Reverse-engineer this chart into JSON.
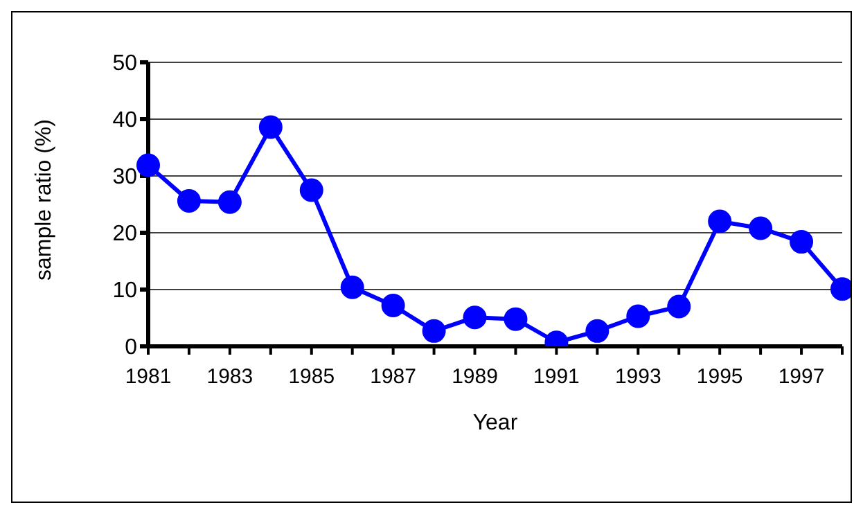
{
  "chart_data": {
    "type": "line",
    "xlabel": "Year",
    "ylabel": "sample ratio (%)",
    "categories": [
      "1981",
      null,
      "1983",
      null,
      "1985",
      null,
      "1987",
      null,
      "1989",
      null,
      "1991",
      null,
      "1993",
      null,
      "1995",
      null,
      "1997",
      null
    ],
    "series": [
      {
        "color": "#0000ff",
        "values": [
          31.9,
          25.6,
          25.4,
          38.6,
          27.5,
          10.4,
          7.2,
          2.7,
          5.1,
          4.8,
          0.7,
          2.7,
          5.3,
          7,
          22,
          20.8,
          18.4,
          10.1
        ]
      }
    ],
    "ylim": [
      0,
      50
    ],
    "yticks": [
      0,
      10,
      20,
      30,
      40,
      50
    ],
    "grid": "y",
    "marker": "circle",
    "line_style": "solid"
  }
}
